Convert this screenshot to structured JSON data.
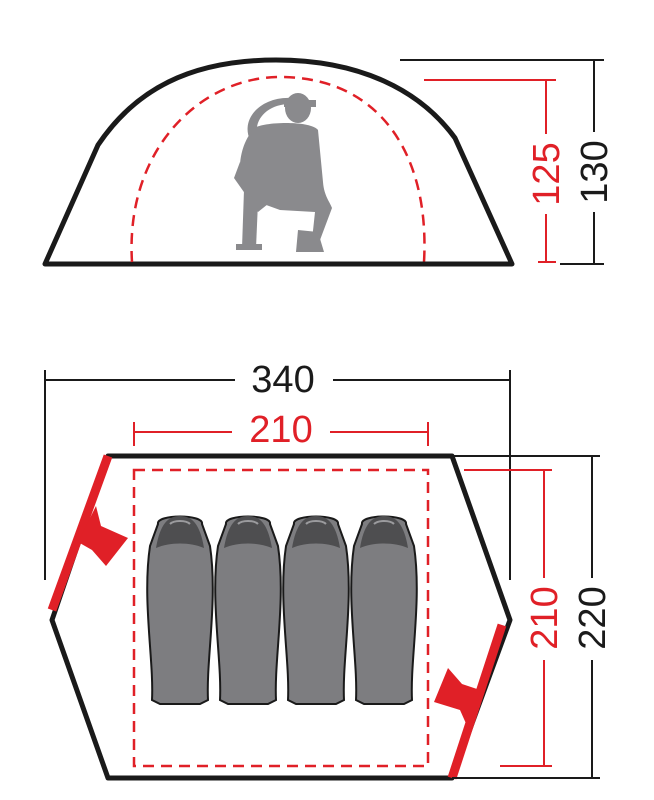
{
  "colors": {
    "outline": "#1a1a1a",
    "inner": "#e02027",
    "figure": "#8a8a8d",
    "bag": "#7d7d80",
    "bag_hood": "#4e4e50"
  },
  "side_view": {
    "total_height": "130",
    "inner_height": "125"
  },
  "top_view": {
    "total_length": "340",
    "inner_length": "210",
    "total_width": "220",
    "inner_width": "210",
    "sleeping_bags": 4,
    "entrances": 2
  }
}
